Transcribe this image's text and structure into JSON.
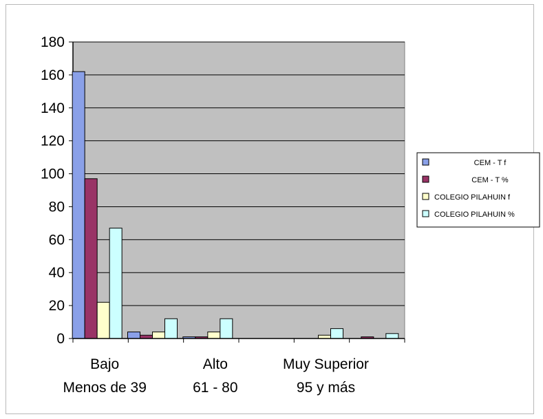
{
  "chart_data": {
    "type": "bar",
    "categories": [
      [
        "Bajo",
        "Menos de 39"
      ],
      [
        "",
        ""
      ],
      [
        "Alto",
        "61 - 80"
      ],
      [
        "",
        ""
      ],
      [
        "Muy Superior",
        "95 y más"
      ],
      [
        "",
        ""
      ]
    ],
    "series": [
      {
        "name": "CEM - T f",
        "color": "#8aa0e8",
        "values": [
          162,
          4,
          1,
          0,
          0,
          0
        ]
      },
      {
        "name": "CEM - T %",
        "color": "#993366",
        "values": [
          97,
          2,
          1,
          0,
          0,
          1
        ]
      },
      {
        "name": "COLEGIO PILAHUIN f",
        "color": "#ffffcc",
        "values": [
          22,
          4,
          4,
          0,
          2,
          0
        ]
      },
      {
        "name": "COLEGIO PILAHUIN %",
        "color": "#ccffff",
        "values": [
          67,
          12,
          12,
          0,
          6,
          3
        ]
      }
    ],
    "ylim": [
      0,
      180
    ],
    "yticks": [
      0,
      20,
      40,
      60,
      80,
      100,
      120,
      140,
      160,
      180
    ],
    "grid": true,
    "legend_position": "right",
    "plot_background": "#c0c0c0"
  }
}
